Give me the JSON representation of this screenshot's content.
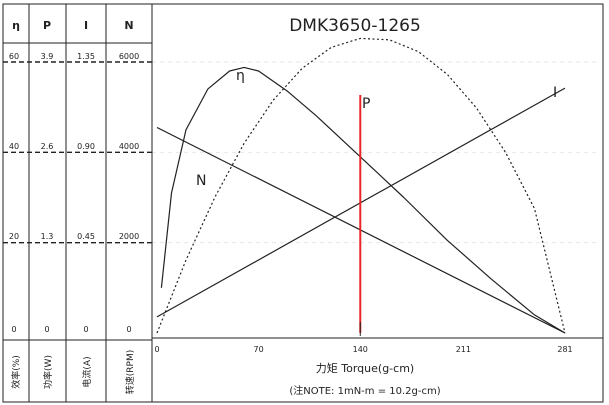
{
  "chart_data": {
    "type": "line",
    "title": "DMK3650-1265",
    "xlabel": "力矩 Torque(g-cm)",
    "note": "(注NOTE: 1mN-m = 10.2g-cm)",
    "x_ticks": [
      "0",
      "70",
      "140",
      "211",
      "281"
    ],
    "xlim": [
      0,
      281
    ],
    "rated_torque": 140,
    "columns": [
      {
        "header": "η",
        "label": "效率(%)",
        "ticks": [
          "60",
          "40",
          "20",
          "0"
        ],
        "max": 60
      },
      {
        "header": "P",
        "label": "功率(W)",
        "ticks": [
          "3.9",
          "2.6",
          "1.3",
          "0"
        ],
        "max": 3.9
      },
      {
        "header": "I",
        "label": "电流(A)",
        "ticks": [
          "1.35",
          "0.90",
          "0.45",
          "0"
        ],
        "max": 1.35
      },
      {
        "header": "N",
        "label": "转速(RPM)",
        "ticks": [
          "6000",
          "4000",
          "2000",
          "0"
        ],
        "max": 6000
      }
    ],
    "series": [
      {
        "name": "η",
        "x": [
          3,
          10,
          20,
          35,
          50,
          60,
          70,
          90,
          110,
          140,
          170,
          200,
          230,
          260,
          281
        ],
        "y": [
          10,
          31,
          45,
          54,
          58,
          58.8,
          58,
          53.5,
          48,
          39,
          30,
          20.5,
          12,
          4,
          0
        ],
        "style": "solid"
      },
      {
        "name": "P",
        "x": [
          0,
          20,
          40,
          60,
          80,
          100,
          120,
          140,
          160,
          180,
          200,
          220,
          240,
          260,
          281
        ],
        "y": [
          0,
          1.05,
          1.96,
          2.73,
          3.35,
          3.81,
          4.11,
          4.24,
          4.22,
          4.05,
          3.72,
          3.24,
          2.6,
          1.79,
          0
        ],
        "style": "dotted"
      },
      {
        "name": "I",
        "x": [
          0,
          281
        ],
        "y": [
          0.08,
          1.22
        ],
        "style": "solid"
      },
      {
        "name": "N",
        "x": [
          0,
          281
        ],
        "y": [
          4550,
          0
        ],
        "style": "solid"
      }
    ]
  }
}
